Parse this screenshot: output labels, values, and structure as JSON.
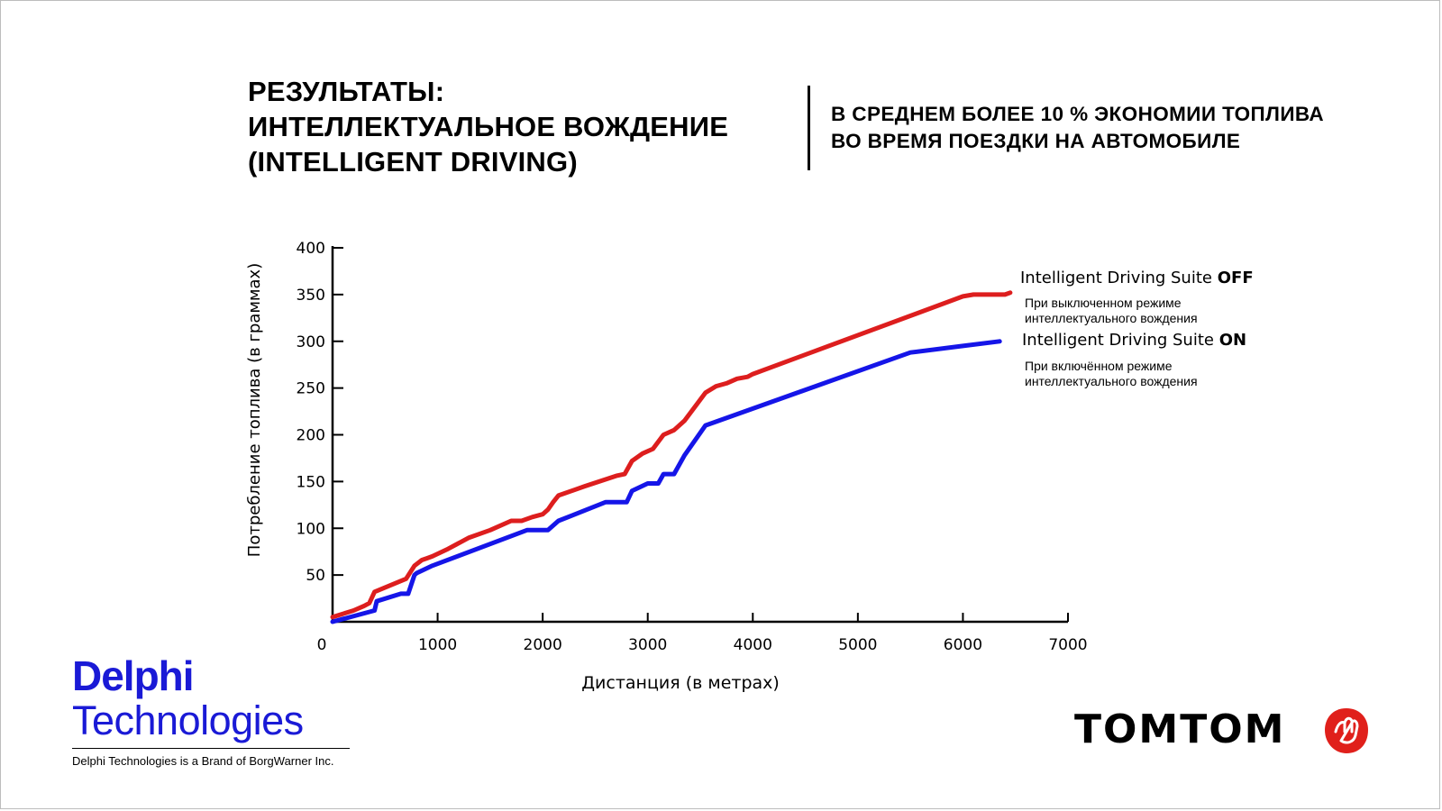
{
  "header": {
    "title_lines": [
      "РЕЗУЛЬТАТЫ:",
      "ИНТЕЛЛЕКТУАЛЬНОЕ ВОЖДЕНИЕ",
      "(INTELLIGENT DRIVING)"
    ],
    "subtitle_lines": [
      "В СРЕДНЕМ БОЛЕЕ 10 % ЭКОНОМИИ ТОПЛИВА",
      "ВО ВРЕМЯ ПОЕЗДКИ НА АВТОМОБИЛЕ"
    ]
  },
  "legend": {
    "off": {
      "title": "Intelligent Driving Suite",
      "state": "OFF",
      "desc_lines": [
        "При выключенном режиме",
        "интеллектуального вождения"
      ]
    },
    "on": {
      "title": "Intelligent Driving Suite",
      "state": "ON",
      "desc_lines": [
        "При включённом режиме",
        "интеллектуального вождения"
      ]
    }
  },
  "logos": {
    "delphi_word": "Delphi",
    "delphi_tech": "Technologies",
    "delphi_note": "Delphi Technologies is a Brand of BorgWarner Inc.",
    "tomtom_word": "TOMTOM",
    "tomtom_hand_icon": "tomtom-hand-icon"
  },
  "colors": {
    "off": "#dd1e1e",
    "on": "#1515e8",
    "delphi": "#1a1ad6",
    "tomtom_hand": "#e0201b"
  },
  "chart_data": {
    "type": "line",
    "xlabel": "Дистанция (в метрах)",
    "ylabel": "Потребление топлива (в граммах)",
    "xlim": [
      0,
      7000
    ],
    "ylim": [
      0,
      400
    ],
    "x_ticks": [
      0,
      1000,
      2000,
      3000,
      4000,
      5000,
      6000,
      7000
    ],
    "y_ticks": [
      50,
      100,
      150,
      200,
      250,
      300,
      350,
      400
    ],
    "grid": false,
    "legend_position": "right",
    "series": [
      {
        "name": "Intelligent Driving Suite OFF",
        "color": "#dd1e1e",
        "x": [
          0,
          200,
          300,
          350,
          400,
          700,
          780,
          850,
          900,
          950,
          1100,
          1300,
          1500,
          1700,
          1800,
          1900,
          2000,
          2050,
          2100,
          2150,
          2400,
          2700,
          2780,
          2850,
          2950,
          3050,
          3150,
          3250,
          3350,
          3550,
          3650,
          3750,
          3850,
          3950,
          4000,
          6000,
          6050,
          6100,
          6400,
          6450
        ],
        "y": [
          5,
          12,
          17,
          20,
          32,
          46,
          60,
          66,
          68,
          70,
          78,
          90,
          98,
          108,
          108,
          112,
          115,
          120,
          128,
          135,
          145,
          156,
          158,
          172,
          180,
          185,
          200,
          205,
          215,
          245,
          252,
          255,
          260,
          262,
          265,
          348,
          349,
          350,
          350,
          352
        ]
      },
      {
        "name": "Intelligent Driving Suite ON",
        "color": "#1515e8",
        "x": [
          0,
          400,
          420,
          650,
          720,
          780,
          800,
          950,
          1850,
          2050,
          2150,
          2600,
          2800,
          2850,
          3000,
          3100,
          3150,
          3250,
          3350,
          3550,
          5500,
          6000,
          6350
        ],
        "y": [
          0,
          12,
          22,
          30,
          30,
          50,
          52,
          60,
          98,
          98,
          108,
          128,
          128,
          140,
          148,
          148,
          158,
          158,
          178,
          210,
          288,
          295,
          300
        ]
      }
    ]
  }
}
